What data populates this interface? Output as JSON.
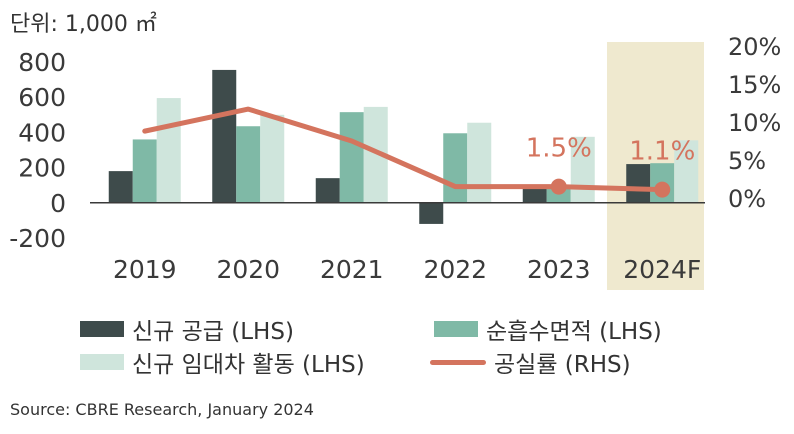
{
  "unit_label": "단위: 1,000 ㎡",
  "source": "Source: CBRE Research, January 2024",
  "colors": {
    "supply": "#3e4b4b",
    "absorption": "#7fb9a6",
    "leasing": "#cfe5dc",
    "vacancy": "#d4745e",
    "highlight": "#efe9cf",
    "axis": "#3a3a3a"
  },
  "chart_data": {
    "type": "bar",
    "categories": [
      "2019",
      "2020",
      "2021",
      "2022",
      "2023",
      "2024F"
    ],
    "highlight_category": "2024F",
    "y_left": {
      "min": -200,
      "max": 800,
      "ticks": [
        800,
        600,
        400,
        200,
        0,
        -200
      ]
    },
    "y_right": {
      "min": 0,
      "max": 0.2,
      "ticks": [
        "20%",
        "15%",
        "10%",
        "5%",
        "0%"
      ],
      "tick_values": [
        0.2,
        0.15,
        0.1,
        0.05,
        0
      ]
    },
    "series": [
      {
        "name": "신규 공급 (LHS)",
        "axis": "left",
        "kind": "bar",
        "values": [
          180,
          755,
          140,
          -120,
          100,
          220
        ]
      },
      {
        "name": "순흡수면적 (LHS)",
        "axis": "left",
        "kind": "bar",
        "values": [
          360,
          435,
          515,
          395,
          100,
          225
        ]
      },
      {
        "name": "신규 임대차 활동 (LHS)",
        "axis": "left",
        "kind": "bar",
        "values": [
          595,
          500,
          545,
          455,
          375,
          355
        ]
      },
      {
        "name": "공실률 (RHS)",
        "axis": "right",
        "kind": "line",
        "values": [
          0.088,
          0.117,
          0.075,
          0.015,
          0.015,
          0.011
        ]
      }
    ],
    "annotations": [
      {
        "category": "2023",
        "text": "1.5%"
      },
      {
        "category": "2024F",
        "text": "1.1%"
      }
    ],
    "legend_position": "bottom",
    "grid": false
  }
}
